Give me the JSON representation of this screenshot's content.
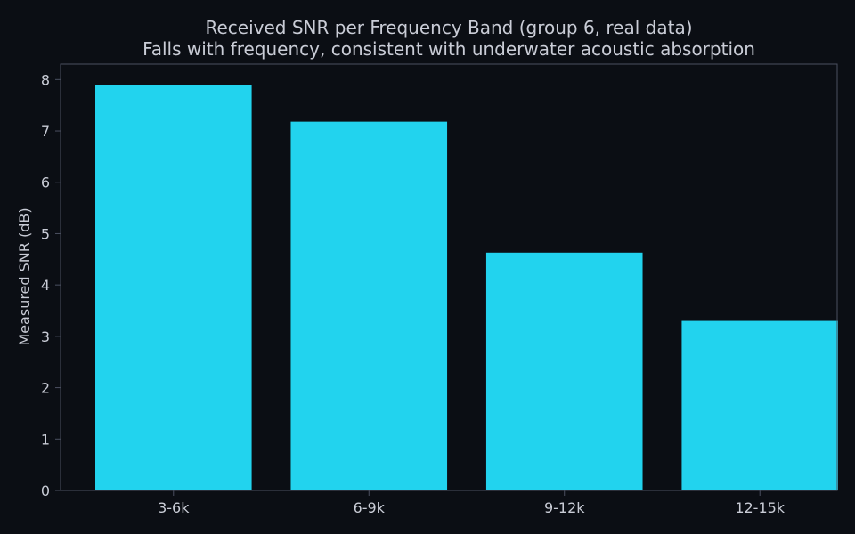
{
  "chart_data": {
    "type": "bar",
    "title": "Received SNR per Frequency Band (group 6, real data)",
    "subtitle": "Falls with frequency, consistent with underwater acoustic absorption",
    "xlabel": "",
    "ylabel": "Measured SNR (dB)",
    "categories": [
      "3-6k",
      "6-9k",
      "9-12k",
      "12-15k"
    ],
    "values": [
      7.9,
      7.18,
      4.63,
      3.3
    ],
    "ylim": [
      0,
      8.3
    ],
    "yticks": [
      0,
      1,
      2,
      3,
      4,
      5,
      6,
      7,
      8
    ],
    "grid": false,
    "legend": "none",
    "colors": {
      "bar": "#22d3ee",
      "background": "#0b0e14",
      "text": "#c9ccd6",
      "axis": "#4b5060"
    }
  }
}
